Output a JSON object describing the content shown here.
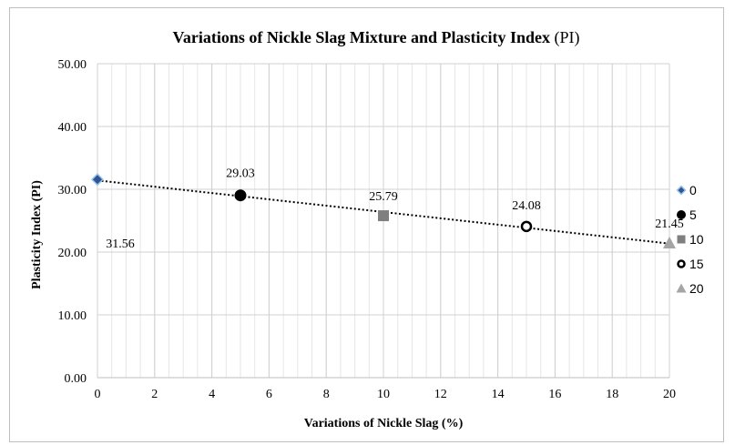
{
  "chart_data": {
    "type": "scatter",
    "title": {
      "main": "Variations of Nickle Slag Mixture and Plasticity Index ",
      "paren": "(PI)"
    },
    "xlabel": "Variations of Nickle Slag (%)",
    "ylabel": "Plasticity Index (PI)",
    "xlim": [
      0,
      20
    ],
    "ylim": [
      0,
      50
    ],
    "x_ticks": [
      "0",
      "2",
      "4",
      "6",
      "8",
      "10",
      "12",
      "14",
      "16",
      "18",
      "20"
    ],
    "y_ticks": [
      "0.00",
      "10.00",
      "20.00",
      "30.00",
      "40.00",
      "50.00"
    ],
    "grid": "on (major and minor vertical)",
    "legend_position": "right",
    "trendline": "linear, dotted",
    "series": [
      {
        "name": "0",
        "x": 0,
        "y": 31.56,
        "label": "31.56",
        "marker": "diamond",
        "color": "#2e5597"
      },
      {
        "name": "5",
        "x": 5,
        "y": 29.03,
        "label": "29.03",
        "marker": "circle-filled",
        "color": "#000000"
      },
      {
        "name": "10",
        "x": 10,
        "y": 25.79,
        "label": "25.79",
        "marker": "square",
        "color": "#7f7f7f"
      },
      {
        "name": "15",
        "x": 15,
        "y": 24.08,
        "label": "24.08",
        "marker": "circle-open",
        "color": "#000000"
      },
      {
        "name": "20",
        "x": 20,
        "y": 21.45,
        "label": "21.45",
        "marker": "triangle",
        "color": "#a5a5a5"
      }
    ]
  }
}
